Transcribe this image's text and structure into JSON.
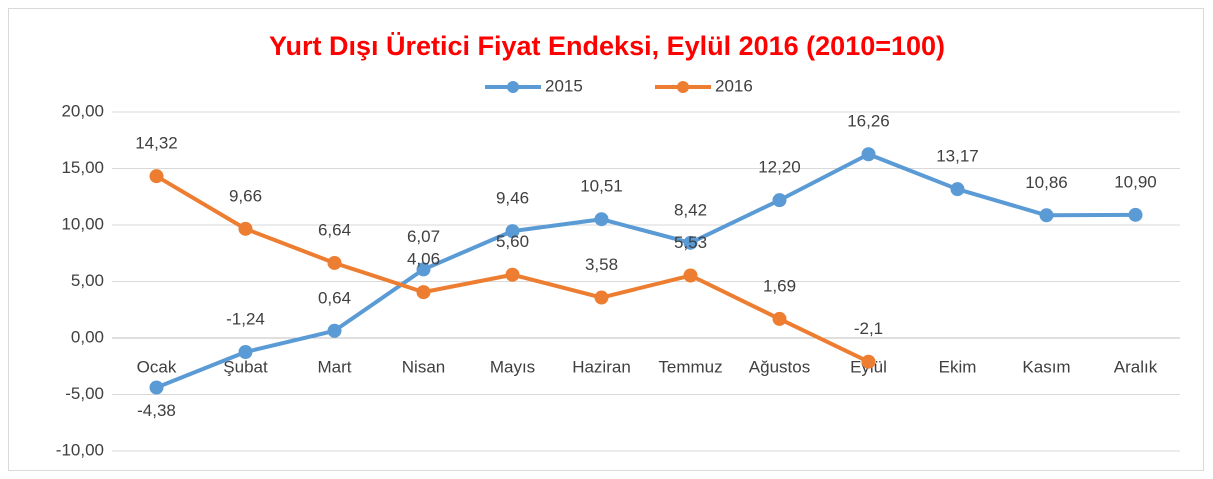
{
  "chart_data": {
    "type": "line",
    "title": "Yurt Dışı Üretici Fiyat Endeksi, Eylül 2016 (2010=100)",
    "categories": [
      "Ocak",
      "Şubat",
      "Mart",
      "Nisan",
      "Mayıs",
      "Haziran",
      "Temmuz",
      "Ağustos",
      "Eylül",
      "Ekim",
      "Kasım",
      "Aralık"
    ],
    "series": [
      {
        "name": "2015",
        "color": "#5b9bd5",
        "values": [
          -4.38,
          -1.24,
          0.64,
          6.07,
          9.46,
          10.51,
          8.42,
          12.2,
          16.26,
          13.17,
          10.86,
          10.9
        ],
        "value_labels": [
          "-4,38",
          "-1,24",
          "0,64",
          "6,07",
          "9,46",
          "10,51",
          "8,42",
          "12,20",
          "16,26",
          "13,17",
          "10,86",
          "10,90"
        ]
      },
      {
        "name": "2016",
        "color": "#ed7d31",
        "values": [
          14.32,
          9.66,
          6.64,
          4.06,
          5.6,
          3.58,
          5.53,
          1.69,
          -2.1,
          null,
          null,
          null
        ],
        "value_labels": [
          "14,32",
          "9,66",
          "6,64",
          "4,06",
          "5,60",
          "3,58",
          "5,53",
          "1,69",
          "-2,1",
          null,
          null,
          null
        ]
      }
    ],
    "ylim": [
      -10,
      20
    ],
    "yticks": [
      {
        "value": -10,
        "label": "-10,00"
      },
      {
        "value": -5,
        "label": "-5,00"
      },
      {
        "value": 0,
        "label": "0,00"
      },
      {
        "value": 5,
        "label": "5,00"
      },
      {
        "value": 10,
        "label": "10,00"
      },
      {
        "value": 15,
        "label": "15,00"
      },
      {
        "value": 20,
        "label": "20,00"
      }
    ],
    "grid": true,
    "legend": "top"
  }
}
